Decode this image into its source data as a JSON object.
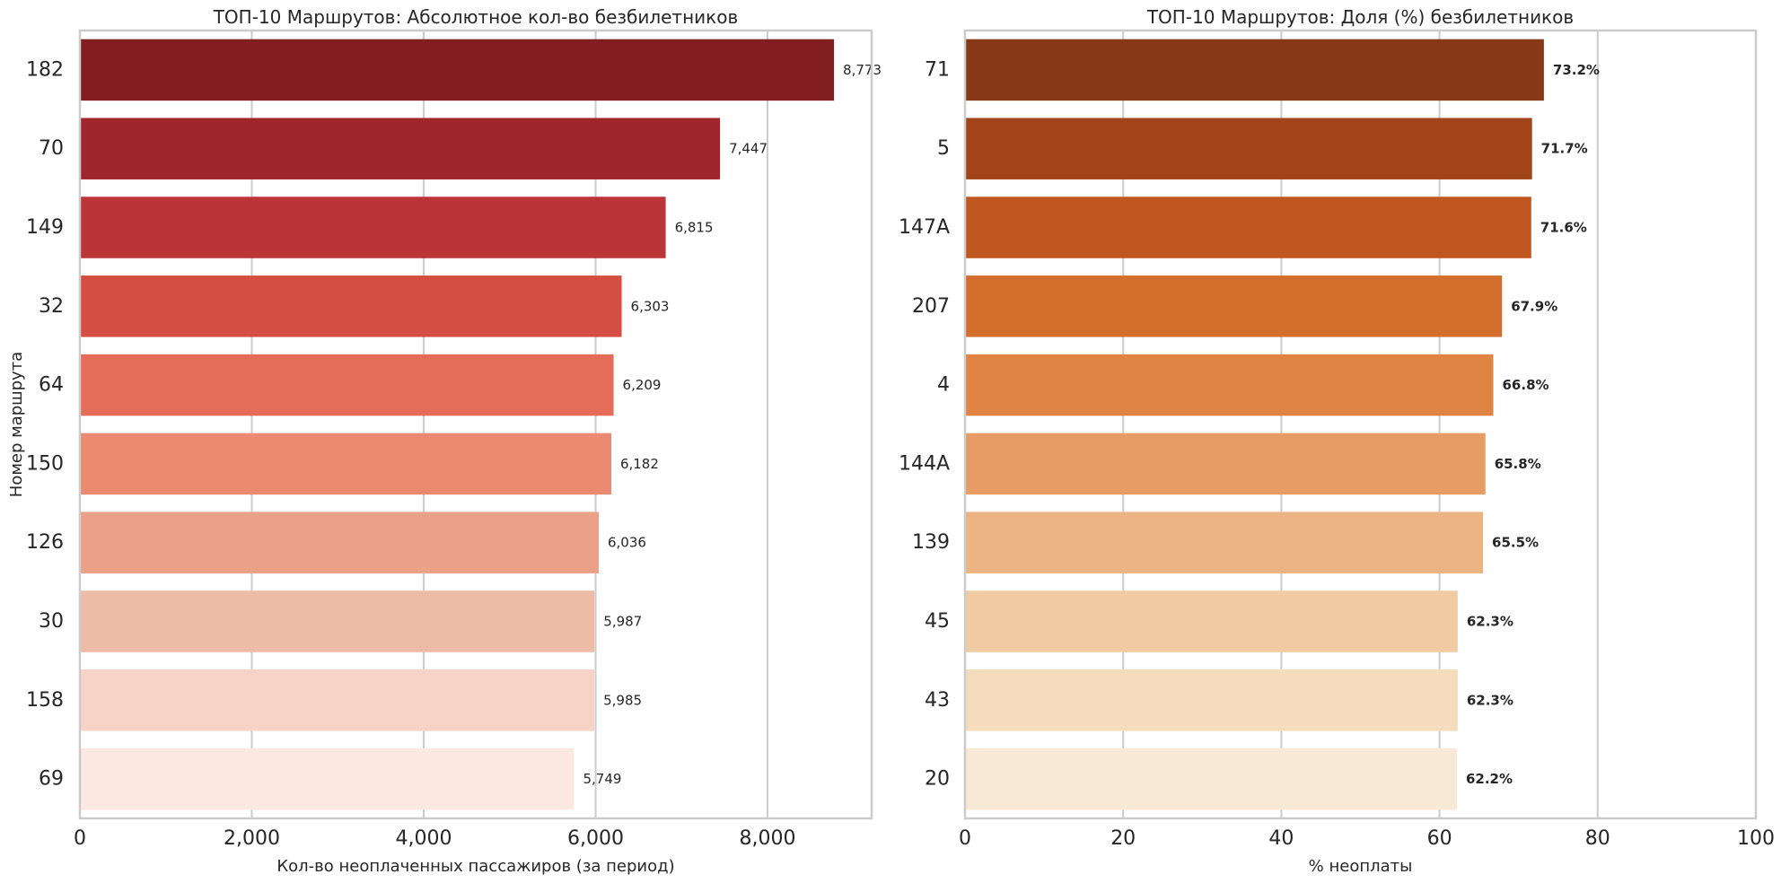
{
  "chart_data": [
    {
      "type": "bar",
      "orientation": "horizontal",
      "title": "ТОП-10 Маршрутов: Абсолютное кол-во безбилетников",
      "xlabel": "Кол-во неоплаченных пассажиров (за период)",
      "ylabel": "Номер маршрута",
      "xlim": [
        0,
        9211
      ],
      "xticks": [
        0,
        2000,
        4000,
        6000,
        8000
      ],
      "xtick_labels": [
        "0",
        "2,000",
        "4,000",
        "6,000",
        "8,000"
      ],
      "grid": "x",
      "categories": [
        "182",
        "70",
        "149",
        "32",
        "64",
        "150",
        "126",
        "30",
        "158",
        "69"
      ],
      "values": [
        8773,
        7447,
        6815,
        6303,
        6209,
        6182,
        6036,
        5987,
        5985,
        5749
      ],
      "value_labels": [
        "8,773",
        "7,447",
        "6,815",
        "6,303",
        "6,209",
        "6,182",
        "6,036",
        "5,987",
        "5,985",
        "5,749"
      ],
      "label_weight": "normal",
      "colors": [
        "#821d22",
        "#a0262d",
        "#bb3437",
        "#d54e44",
        "#e56c59",
        "#e98a71",
        "#eba088",
        "#eebca6",
        "#f6d3c6",
        "#fae8e1"
      ]
    },
    {
      "type": "bar",
      "orientation": "horizontal",
      "title": "ТОП-10 Маршрутов: Доля (%) безбилетников",
      "xlabel": "% неоплаты",
      "ylabel": "",
      "xlim": [
        0,
        100
      ],
      "xticks": [
        0,
        20,
        40,
        60,
        80,
        100
      ],
      "xtick_labels": [
        "0",
        "20",
        "40",
        "60",
        "80",
        "100"
      ],
      "grid": "x",
      "categories": [
        "71",
        "5",
        "147A",
        "207",
        "4",
        "144A",
        "139",
        "45",
        "43",
        "20"
      ],
      "values": [
        73.2,
        71.7,
        71.6,
        67.9,
        66.8,
        65.8,
        65.5,
        62.3,
        62.3,
        62.2
      ],
      "value_labels": [
        "73.2%",
        "71.7%",
        "71.6%",
        "67.9%",
        "66.8%",
        "65.8%",
        "65.5%",
        "62.3%",
        "62.3%",
        "62.2%"
      ],
      "label_weight": "bold",
      "colors": [
        "#873817",
        "#a3451a",
        "#c05720",
        "#d46e2d",
        "#df8443",
        "#e69c62",
        "#ebb482",
        "#f0cba4",
        "#f4dcbd",
        "#f8e9d6"
      ]
    }
  ]
}
